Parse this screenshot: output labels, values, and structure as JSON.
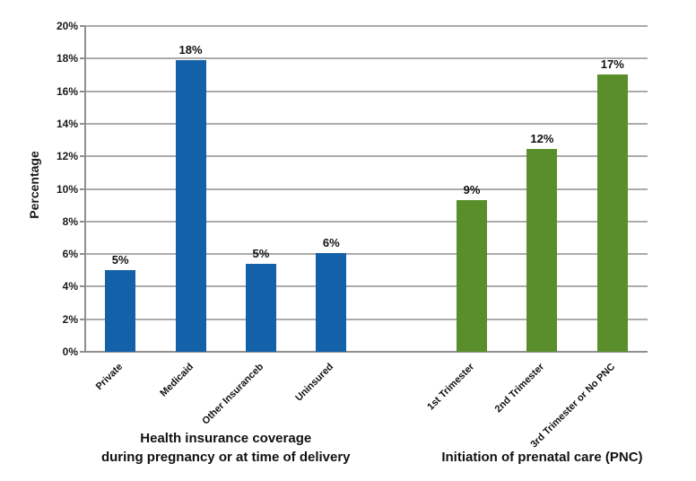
{
  "page": {
    "background": "#ffffff"
  },
  "chart_data": {
    "type": "bar",
    "title": "",
    "ylabel": "Percentage",
    "xlabel": "",
    "ylim": [
      0,
      20
    ],
    "ytick_step": 2,
    "ytick_suffix": "%",
    "yticks": [
      "0%",
      "2%",
      "4%",
      "6%",
      "8%",
      "10%",
      "12%",
      "14%",
      "16%",
      "18%",
      "20%"
    ],
    "grid": "horizontal gridlines every 2%",
    "legend_position": "none",
    "axis_color": "#8f8f8f",
    "gridline_color": "#ababab",
    "groups": [
      {
        "name": "Health insurance coverage during pregnancy or at time of delivery",
        "name_lines": [
          "Health insurance coverage",
          "during pregnancy or at time of delivery"
        ],
        "color": "#1261a9",
        "categories": [
          "Private",
          "Medicaid",
          "Other Insuranceb",
          "Uninsured"
        ],
        "values": [
          5,
          18,
          5,
          6
        ],
        "data_labels": [
          "5%",
          "18%",
          "5%",
          "6%"
        ],
        "bar_heights_as_drawn": [
          5.0,
          17.9,
          5.4,
          6.05
        ]
      },
      {
        "name": "Initiation of prenatal care (PNC)",
        "name_lines": [
          "Initiation of prenatal care (PNC)"
        ],
        "color": "#5a8e2a",
        "categories": [
          "1st Trimester",
          "2nd Trimester",
          "3rd Trimester or No PNC"
        ],
        "values": [
          9,
          12,
          17
        ],
        "data_labels": [
          "9%",
          "12%",
          "17%"
        ],
        "bar_heights_as_drawn": [
          9.3,
          12.45,
          17.0
        ]
      }
    ]
  }
}
